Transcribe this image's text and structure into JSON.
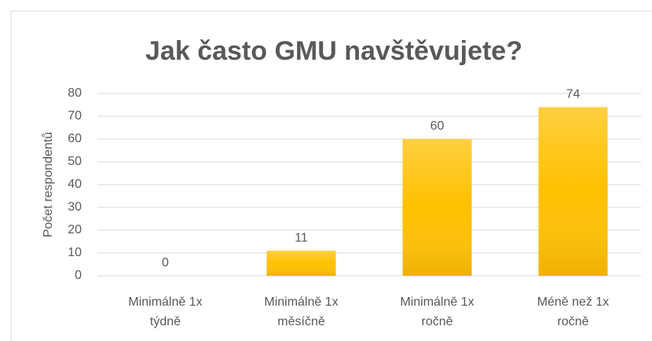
{
  "chart_data": {
    "type": "bar",
    "title": "Jak často GMU navštěvujete?",
    "y_label": "Počet respondentů",
    "categories": [
      "Minimálně 1x týdně",
      "Minimálně 1x měsíčně",
      "Minimálně 1x ročně",
      "Méně než 1x ročně"
    ],
    "values": [
      0,
      11,
      60,
      74
    ],
    "color": "#ffc000",
    "ylim": [
      0,
      80
    ],
    "yticks": [
      0,
      10,
      20,
      30,
      40,
      50,
      60,
      70,
      80
    ],
    "grid": true
  }
}
